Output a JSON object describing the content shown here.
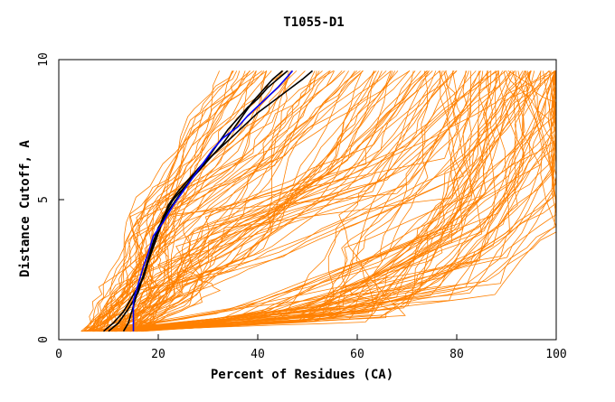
{
  "chart_data": {
    "type": "line",
    "title": "T1055-D1",
    "xlabel": "Percent of Residues (CA)",
    "ylabel": "Distance Cutoff, A",
    "xlim": [
      0,
      100
    ],
    "ylim": [
      0,
      10
    ],
    "xticks": [
      "0",
      "20",
      "40",
      "60",
      "80",
      "100"
    ],
    "yticks": [
      "0",
      "5",
      "10"
    ],
    "grid": false,
    "legend": "none",
    "colors": {
      "models": "#ff8000",
      "highlight_dark": "#000000",
      "highlight_blue": "#0000ff"
    },
    "series": [
      {
        "color": "#ff8000",
        "count": 150,
        "points": []
      },
      {
        "color": "#000000",
        "points": [
          [
            13,
            0.3
          ],
          [
            14,
            0.6
          ],
          [
            15,
            1.2
          ],
          [
            16,
            1.8
          ],
          [
            17,
            2.3
          ],
          [
            18,
            2.8
          ],
          [
            19,
            3.4
          ],
          [
            20,
            3.9
          ],
          [
            21,
            4.4
          ],
          [
            23,
            5.0
          ],
          [
            25,
            5.4
          ],
          [
            27,
            5.8
          ],
          [
            29,
            6.2
          ],
          [
            31,
            6.6
          ],
          [
            33,
            7.0
          ],
          [
            35,
            7.5
          ],
          [
            37,
            8.0
          ],
          [
            39,
            8.5
          ],
          [
            41,
            8.9
          ],
          [
            43,
            9.3
          ],
          [
            45,
            9.6
          ]
        ]
      },
      {
        "color": "#000000",
        "points": [
          [
            9,
            0.3
          ],
          [
            11,
            0.6
          ],
          [
            13,
            1.0
          ],
          [
            15,
            1.6
          ],
          [
            17,
            2.2
          ],
          [
            18,
            2.8
          ],
          [
            19,
            3.3
          ],
          [
            20,
            3.8
          ],
          [
            21,
            4.3
          ],
          [
            22,
            4.8
          ],
          [
            24,
            5.3
          ],
          [
            26,
            5.7
          ],
          [
            28,
            6.1
          ],
          [
            30,
            6.5
          ],
          [
            32,
            7.0
          ],
          [
            34,
            7.5
          ],
          [
            36,
            7.9
          ],
          [
            38,
            8.3
          ],
          [
            40,
            8.6
          ],
          [
            42,
            9.0
          ],
          [
            44,
            9.3
          ],
          [
            46,
            9.6
          ]
        ]
      },
      {
        "color": "#000000",
        "points": [
          [
            10,
            0.3
          ],
          [
            12,
            0.6
          ],
          [
            14,
            1.1
          ],
          [
            16,
            1.7
          ],
          [
            17,
            2.3
          ],
          [
            18,
            2.9
          ],
          [
            19,
            3.5
          ],
          [
            20,
            4.0
          ],
          [
            22,
            4.6
          ],
          [
            24,
            5.1
          ],
          [
            26,
            5.6
          ],
          [
            28,
            6.1
          ],
          [
            31,
            6.6
          ],
          [
            34,
            7.1
          ],
          [
            37,
            7.6
          ],
          [
            40,
            8.1
          ],
          [
            43,
            8.5
          ],
          [
            46,
            8.9
          ],
          [
            49,
            9.3
          ],
          [
            51,
            9.6
          ]
        ]
      },
      {
        "color": "#0000ff",
        "points": [
          [
            15,
            0.3
          ],
          [
            15,
            0.8
          ],
          [
            15,
            1.4
          ],
          [
            16,
            2.0
          ],
          [
            17,
            2.6
          ],
          [
            18,
            3.1
          ],
          [
            19,
            3.7
          ],
          [
            21,
            4.2
          ],
          [
            23,
            4.8
          ],
          [
            25,
            5.3
          ],
          [
            27,
            5.8
          ],
          [
            29,
            6.3
          ],
          [
            31,
            6.8
          ],
          [
            33,
            7.2
          ],
          [
            36,
            7.6
          ],
          [
            38,
            8.0
          ],
          [
            41,
            8.5
          ],
          [
            44,
            9.0
          ],
          [
            46,
            9.4
          ],
          [
            47,
            9.6
          ]
        ]
      }
    ]
  }
}
